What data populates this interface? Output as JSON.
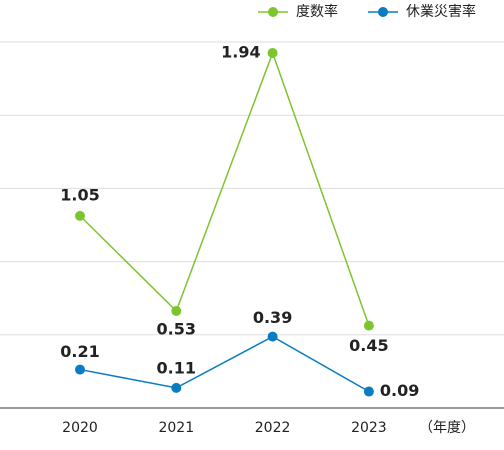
{
  "chart_data": {
    "type": "line",
    "categories": [
      "2020",
      "2021",
      "2022",
      "2023"
    ],
    "x_unit": "（年度）",
    "series": [
      {
        "name": "度数率",
        "color": "#7dc52e",
        "values": [
          1.05,
          0.53,
          1.94,
          0.45
        ]
      },
      {
        "name": "休業災害率",
        "color": "#0a7cc1",
        "values": [
          0.21,
          0.11,
          0.39,
          0.09
        ]
      }
    ],
    "ylim": [
      0,
      2.0
    ],
    "yticks": [
      0,
      0.4,
      0.8,
      1.2,
      1.6,
      2.0
    ],
    "grid": true,
    "legend": "top-right"
  }
}
